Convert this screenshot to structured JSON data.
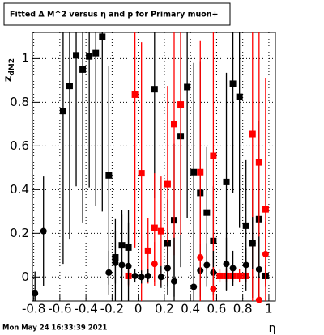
{
  "chart_data": {
    "type": "scatter",
    "title": "Fitted Δ M^2 versus η and p for Primary muon+",
    "xlabel": "η",
    "ylabel": "z",
    "ylabel_sub": "dM2",
    "footer": "Mon May 24 16:33:39 2021",
    "xlim": [
      -0.81,
      1.05
    ],
    "ylim": [
      -0.11,
      1.12
    ],
    "xticks": [
      -0.8,
      -0.6,
      -0.4,
      -0.2,
      0,
      0.2,
      0.4,
      0.6,
      0.8,
      1
    ],
    "yticks": [
      0,
      0.2,
      0.4,
      0.6,
      0.8,
      1
    ],
    "grid": true,
    "series": [
      {
        "marker": "square",
        "color": "#000000",
        "x": [
          -0.575,
          -0.525,
          -0.475,
          -0.425,
          -0.375,
          -0.325,
          -0.275,
          -0.225,
          -0.175,
          -0.125,
          -0.075,
          0.125,
          0.225,
          0.275,
          0.325,
          0.375,
          0.425,
          0.475,
          0.525,
          0.575,
          0.675,
          0.725,
          0.775,
          0.825,
          0.875,
          0.925,
          0.975
        ],
        "values": [
          0.76,
          0.875,
          1.015,
          0.95,
          1.01,
          1.025,
          1.1,
          0.465,
          0.09,
          0.145,
          0.135,
          0.86,
          0.155,
          0.26,
          0.645,
          0.87,
          0.48,
          0.385,
          0.295,
          0.165,
          0.435,
          0.885,
          0.825,
          0.235,
          0.155,
          0.265,
          0.005
        ],
        "errors": [
          0.7,
          0.7,
          0.6,
          0.7,
          0.6,
          0.7,
          0.8,
          0.5,
          0.12,
          0.14,
          0.17,
          0.5,
          0.2,
          0.35,
          0.6,
          0.6,
          0.5,
          0.6,
          0.3,
          0.25,
          0.5,
          0.5,
          0.6,
          0.3,
          0.25,
          0.45,
          0.05
        ]
      },
      {
        "marker": "square",
        "color": "#ff0000",
        "x": [
          -0.075,
          -0.025,
          0.025,
          0.075,
          0.125,
          0.175,
          0.225,
          0.275,
          0.325,
          0.475,
          0.575,
          0.625,
          0.675,
          0.725,
          0.775,
          0.825,
          0.875,
          0.925,
          0.975
        ],
        "values": [
          0.005,
          0.835,
          0.475,
          0.12,
          0.225,
          0.21,
          0.425,
          0.7,
          0.79,
          0.48,
          0.555,
          0.005,
          0.005,
          0.005,
          0.005,
          0.005,
          0.655,
          0.525,
          0.31
        ],
        "errors": [
          0.05,
          0.7,
          0.6,
          0.15,
          0.25,
          0.25,
          0.45,
          0.6,
          0.6,
          0.6,
          0.7,
          0.03,
          0.03,
          0.03,
          0.03,
          0.03,
          0.8,
          0.7,
          0.6
        ]
      },
      {
        "marker": "circle",
        "color": "#000000",
        "x": [
          -0.79,
          -0.725,
          -0.225,
          -0.175,
          -0.125,
          -0.075,
          -0.025,
          0.025,
          0.075,
          0.175,
          0.225,
          0.275,
          0.425,
          0.475,
          0.525,
          0.575,
          0.675,
          0.725,
          0.825,
          0.875,
          0.925
        ],
        "values": [
          -0.075,
          0.21,
          0.02,
          0.065,
          0.055,
          0.05,
          0.005,
          0.0,
          0.005,
          0.0,
          0.04,
          -0.02,
          -0.045,
          0.03,
          0.055,
          0.02,
          0.06,
          0.04,
          0.055,
          0.155,
          0.035
        ],
        "errors": [
          0.1,
          0.25,
          0.1,
          0.2,
          0.25,
          0.2,
          0.03,
          0.03,
          0.03,
          0.05,
          0.12,
          0.2,
          0.1,
          0.12,
          0.1,
          0.1,
          0.12,
          0.08,
          0.08,
          0.12,
          0.15
        ]
      },
      {
        "marker": "circle",
        "color": "#ff0000",
        "x": [
          0.125,
          0.475,
          0.575,
          0.925,
          0.975
        ],
        "values": [
          0.06,
          0.09,
          -0.055,
          -0.105,
          0.105
        ],
        "errors": [
          0.1,
          0.2,
          0.1,
          0.1,
          0.15
        ]
      }
    ]
  }
}
